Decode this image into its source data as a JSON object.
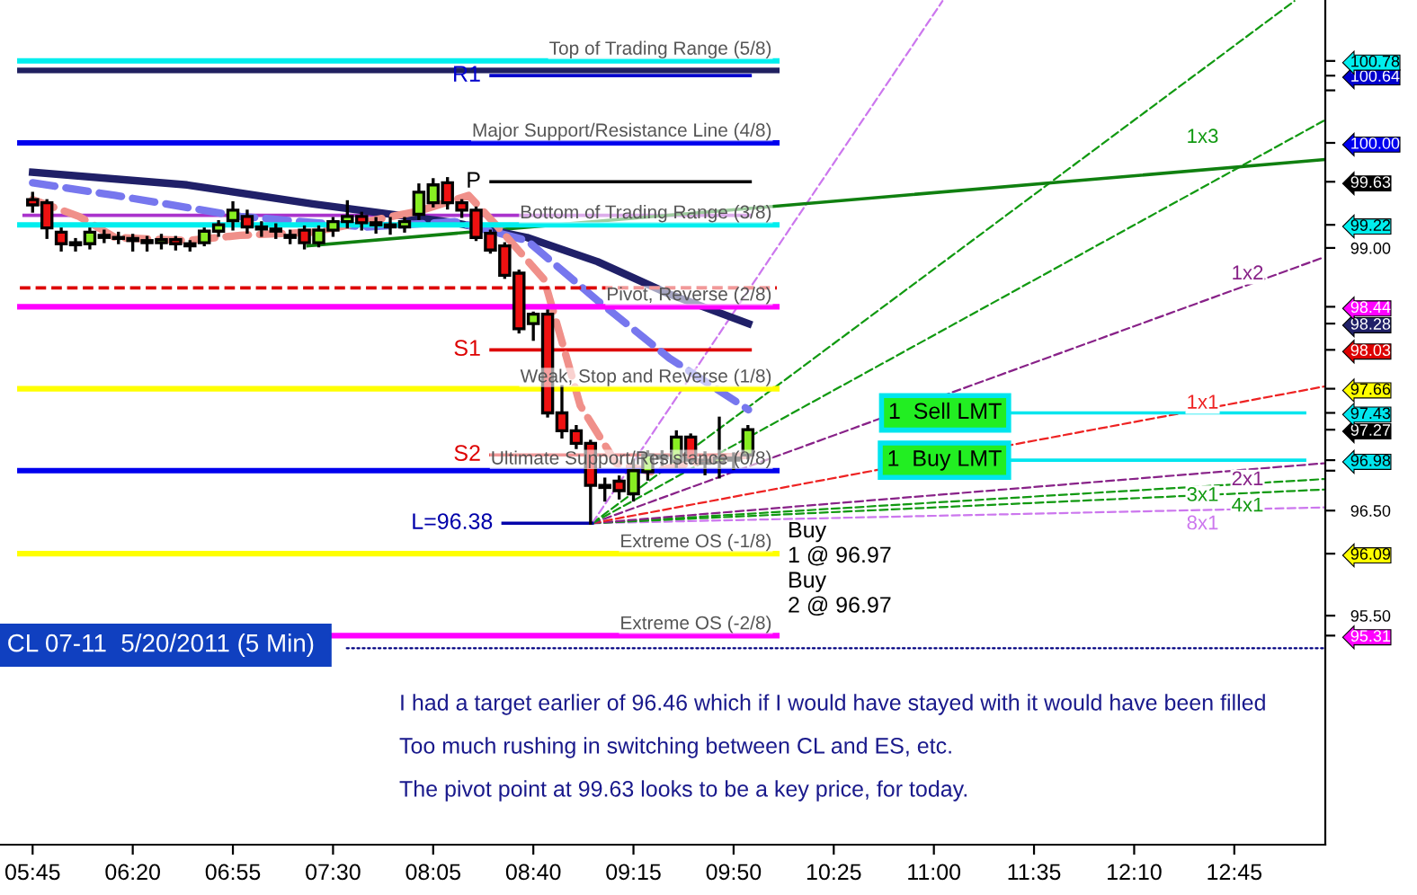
{
  "chart_data": {
    "type": "candlestick",
    "title": "CL 07-11  5/20/2011 (5 Min)",
    "x": [
      5.75,
      5.8333,
      5.9167,
      6.0,
      6.0833,
      6.1667,
      6.25,
      6.3333,
      6.4167,
      6.5,
      6.5833,
      6.6667,
      6.75,
      6.8333,
      6.9167,
      7.0,
      7.0833,
      7.1667,
      7.25,
      7.3333,
      7.4167,
      7.5,
      7.5833,
      7.6667,
      7.75,
      7.8333,
      7.9167,
      8.0,
      8.0833,
      8.1667,
      8.25,
      8.3333,
      8.4167,
      8.5,
      8.5833,
      8.6667,
      8.75,
      8.8333,
      8.9167,
      9.0,
      9.0833,
      9.1667,
      9.25,
      9.3333,
      9.4167,
      9.5,
      9.5833,
      9.6667,
      9.75,
      9.8333,
      9.9167
    ],
    "ohlc": [
      [
        99.46,
        99.52,
        99.35,
        99.41
      ],
      [
        99.43,
        99.45,
        99.1,
        99.19
      ],
      [
        99.15,
        99.18,
        98.98,
        99.04
      ],
      [
        99.05,
        99.08,
        98.98,
        99.03
      ],
      [
        99.04,
        99.18,
        99.0,
        99.15
      ],
      [
        99.12,
        99.16,
        99.06,
        99.1
      ],
      [
        99.1,
        99.14,
        99.05,
        99.09
      ],
      [
        99.09,
        99.12,
        98.98,
        99.07
      ],
      [
        99.07,
        99.1,
        98.98,
        99.05
      ],
      [
        99.05,
        99.12,
        99.0,
        99.08
      ],
      [
        99.08,
        99.1,
        98.99,
        99.04
      ],
      [
        99.04,
        99.06,
        98.98,
        99.02
      ],
      [
        99.05,
        99.18,
        99.03,
        99.16
      ],
      [
        99.16,
        99.25,
        99.12,
        99.22
      ],
      [
        99.26,
        99.43,
        99.18,
        99.36
      ],
      [
        99.3,
        99.35,
        99.15,
        99.2
      ],
      [
        99.2,
        99.24,
        99.12,
        99.18
      ],
      [
        99.18,
        99.22,
        99.1,
        99.16
      ],
      [
        99.12,
        99.16,
        99.05,
        99.1
      ],
      [
        99.17,
        99.2,
        99.0,
        99.05
      ],
      [
        99.05,
        99.2,
        99.02,
        99.17
      ],
      [
        99.17,
        99.28,
        99.12,
        99.25
      ],
      [
        99.25,
        99.44,
        99.2,
        99.3
      ],
      [
        99.3,
        99.33,
        99.18,
        99.24
      ],
      [
        99.24,
        99.28,
        99.15,
        99.22
      ],
      [
        99.22,
        99.28,
        99.14,
        99.2
      ],
      [
        99.2,
        99.28,
        99.16,
        99.25
      ],
      [
        99.32,
        99.6,
        99.28,
        99.53
      ],
      [
        99.43,
        99.65,
        99.4,
        99.6
      ],
      [
        99.62,
        99.66,
        99.38,
        99.43
      ],
      [
        99.43,
        99.45,
        99.3,
        99.36
      ],
      [
        99.36,
        99.38,
        99.08,
        99.1
      ],
      [
        99.14,
        99.16,
        98.96,
        98.98
      ],
      [
        99.02,
        99.04,
        98.72,
        98.74
      ],
      [
        98.76,
        98.78,
        98.2,
        98.23
      ],
      [
        98.28,
        98.38,
        98.13,
        98.37
      ],
      [
        98.37,
        98.4,
        97.4,
        97.43
      ],
      [
        97.43,
        97.68,
        97.2,
        97.26
      ],
      [
        97.26,
        97.3,
        97.1,
        97.14
      ],
      [
        97.14,
        97.16,
        96.38,
        96.74
      ],
      [
        96.74,
        96.8,
        96.6,
        96.72
      ],
      [
        96.78,
        96.82,
        96.62,
        96.69
      ],
      [
        96.66,
        96.98,
        96.6,
        96.88
      ],
      [
        96.87,
        97.06,
        96.8,
        97.03
      ],
      [
        97.02,
        97.06,
        96.94,
        97.0
      ],
      [
        96.97,
        97.25,
        96.92,
        97.2
      ],
      [
        97.2,
        97.22,
        96.96,
        96.98
      ],
      [
        96.98,
        97.05,
        96.85,
        96.95
      ],
      [
        96.96,
        97.38,
        96.82,
        97.0
      ],
      [
        97.0,
        97.04,
        96.9,
        96.98
      ],
      [
        97.03,
        97.3,
        97.0,
        97.27
      ]
    ],
    "series": [
      {
        "type": "line",
        "color": "#202068",
        "x": [
          5.75,
          6.65,
          7.38,
          8.21,
          8.63,
          9.04,
          9.46,
          9.92
        ],
        "values": [
          99.72,
          99.6,
          99.42,
          99.24,
          99.1,
          98.87,
          98.56,
          98.28
        ]
      },
      {
        "type": "line",
        "color": "#7777ee",
        "line_style": "dashed",
        "x": [
          5.75,
          6.23,
          6.96,
          7.69,
          8.21,
          8.63,
          9.04,
          9.46,
          9.92
        ],
        "values": [
          99.62,
          99.5,
          99.3,
          99.2,
          99.25,
          99.07,
          98.5,
          97.95,
          97.46
        ]
      },
      {
        "type": "line",
        "color": "#f0908a",
        "line_style": "dashed",
        "x": [
          5.75,
          6.02,
          6.23,
          6.65,
          6.96,
          7.38,
          8.0,
          8.29,
          8.46,
          8.73,
          8.94,
          9.15,
          9.35,
          9.67,
          9.92
        ],
        "values": [
          99.46,
          99.3,
          99.1,
          99.07,
          99.12,
          99.15,
          99.35,
          99.5,
          99.2,
          98.7,
          97.5,
          96.95,
          96.87,
          96.98,
          97.03
        ]
      },
      {
        "type": "line",
        "color": "#108010",
        "x": [
          7.354,
          13.27
        ],
        "values": [
          99.02,
          99.84
        ]
      },
      {
        "type": "line",
        "color": "#aa33cc",
        "x": [
          5.7,
          9.93
        ],
        "values": [
          99.31,
          99.31
        ]
      },
      {
        "name": "R1",
        "type": "line",
        "color": "#0000cc",
        "x": [
          8.42,
          9.93
        ],
        "values": [
          100.64,
          100.64
        ]
      },
      {
        "name": "P",
        "type": "line",
        "color": "#000000",
        "x": [
          8.42,
          9.93
        ],
        "values": [
          99.63,
          99.63
        ]
      },
      {
        "name": "S1",
        "type": "line",
        "color": "#dd0000",
        "x": [
          8.42,
          9.93
        ],
        "values": [
          98.03,
          98.03
        ]
      },
      {
        "name": "S2",
        "type": "line",
        "color": "#dd0000",
        "x": [
          8.42,
          9.93
        ],
        "values": [
          97.03,
          97.03
        ]
      },
      {
        "name": "L=96.38",
        "type": "line",
        "color": "#0000aa",
        "x": [
          8.49,
          9.01
        ],
        "values": [
          96.38,
          96.38
        ]
      },
      {
        "name": "1  Sell LMT",
        "type": "line",
        "color": "#00e5ee",
        "x": [
          11.44,
          13.16
        ],
        "values": [
          97.43,
          97.43
        ]
      },
      {
        "name": "1  Buy LMT",
        "type": "line",
        "color": "#00e5ee",
        "x": [
          11.44,
          13.16
        ],
        "values": [
          96.98,
          96.98
        ]
      },
      {
        "type": "line",
        "color": "#000080",
        "line_style": "dotted",
        "x": [
          7.58,
          13.28
        ],
        "values": [
          95.19,
          95.19
        ]
      },
      {
        "type": "line",
        "color": "#cc77ee",
        "line_style": "dashed",
        "x": [
          9.01,
          11.05
        ],
        "values": [
          96.38,
          101.35
        ]
      },
      {
        "type": "line",
        "color": "#119911",
        "line_style": "dashed",
        "x": [
          9.01,
          13.1
        ],
        "values": [
          96.38,
          101.35
        ]
      },
      {
        "name": "1x3",
        "type": "line",
        "color": "#119911",
        "line_style": "dashed",
        "x": [
          9.01,
          13.27
        ],
        "values": [
          96.38,
          100.21
        ]
      },
      {
        "name": "1x2",
        "type": "line",
        "color": "#882288",
        "line_style": "dashed",
        "x": [
          9.01,
          13.27
        ],
        "values": [
          96.38,
          98.91
        ]
      },
      {
        "name": "1x1",
        "type": "line",
        "color": "#ee2222",
        "line_style": "dashed",
        "x": [
          9.01,
          13.27
        ],
        "values": [
          96.38,
          97.68
        ]
      },
      {
        "name": "2x1",
        "type": "line",
        "color": "#882288",
        "line_style": "dashed",
        "x": [
          9.01,
          13.27
        ],
        "values": [
          96.38,
          96.95
        ]
      },
      {
        "name": "3x1",
        "type": "line",
        "color": "#119911",
        "line_style": "dashed",
        "x": [
          9.01,
          13.27
        ],
        "values": [
          96.38,
          96.8
        ]
      },
      {
        "name": "4x1",
        "type": "line",
        "color": "#119911",
        "line_style": "dashed",
        "x": [
          9.01,
          13.27
        ],
        "values": [
          96.38,
          96.7
        ]
      },
      {
        "name": "8x1",
        "type": "line",
        "color": "#cc77ee",
        "line_style": "dashed",
        "x": [
          9.01,
          13.27
        ],
        "values": [
          96.38,
          96.53
        ]
      }
    ],
    "ref_lines": [
      {
        "axis": "y",
        "value": 100.78,
        "label": "Top of Trading Range (5/8)",
        "color": "#00eeee"
      },
      {
        "axis": "y",
        "value": 100.69,
        "label": null,
        "color": "#202060"
      },
      {
        "axis": "y",
        "value": 100.0,
        "label": "Major Support/Resistance Line (4/8)",
        "color": "#0000ee"
      },
      {
        "axis": "y",
        "value": 99.22,
        "label": "Bottom of Trading Range (3/8)",
        "color": "#00eeee"
      },
      {
        "axis": "y",
        "value": 98.62,
        "label": null,
        "color": "#dd0000",
        "line_style": "dashed"
      },
      {
        "axis": "y",
        "value": 98.44,
        "label": "Pivot, Reverse (2/8)",
        "color": "#ff00ff"
      },
      {
        "axis": "y",
        "value": 97.66,
        "label": "Weak, Stop and Reverse (1/8)",
        "color": "#ffff00"
      },
      {
        "axis": "y",
        "value": 96.88,
        "label": "Ultimate Support/Resistance (0/8)",
        "color": "#0000ee"
      },
      {
        "axis": "y",
        "value": 96.09,
        "label": "Extreme OS (-1/8)",
        "color": "#ffff00"
      },
      {
        "axis": "y",
        "value": 95.31,
        "label": "Extreme OS (-2/8)",
        "color": "#ff00ff"
      }
    ],
    "annotations": [
      "Buy\n1 @ 96.97\nBuy\n2 @ 96.97",
      "I had a target earlier of 96.46 which if I would have stayed with it would have been filled",
      "Too much rushing in switching between CL and ES, etc.",
      "The pivot point at 99.63 looks to be a key price, for today."
    ],
    "xlim": [
      5.56,
      13.28
    ],
    "ylim": [
      93.32,
      101.36
    ],
    "xticks": [
      {
        "value": 5.75,
        "label": "05:45"
      },
      {
        "value": 6.3333,
        "label": "06:20"
      },
      {
        "value": 6.9167,
        "label": "06:55"
      },
      {
        "value": 7.5,
        "label": "07:30"
      },
      {
        "value": 8.0833,
        "label": "08:05"
      },
      {
        "value": 8.6667,
        "label": "08:40"
      },
      {
        "value": 9.25,
        "label": "09:15"
      },
      {
        "value": 9.8333,
        "label": "09:50"
      },
      {
        "value": 10.4167,
        "label": "10:25"
      },
      {
        "value": 11.0,
        "label": "11:00"
      },
      {
        "value": 11.5833,
        "label": "11:35"
      },
      {
        "value": 12.1667,
        "label": "12:10"
      },
      {
        "value": 12.75,
        "label": "12:45"
      }
    ],
    "yticks": [
      {
        "value": 95.31,
        "label": "95.31"
      },
      {
        "value": 95.5,
        "label": "95.50"
      },
      {
        "value": 96.09,
        "label": "96.09"
      },
      {
        "value": 96.5,
        "label": "96.50"
      },
      {
        "value": 96.88,
        "label": null
      },
      {
        "value": 96.98,
        "label": "96.98"
      },
      {
        "value": 97.27,
        "label": "97.27"
      },
      {
        "value": 97.43,
        "label": "97.43"
      },
      {
        "value": 97.66,
        "label": "97.66"
      },
      {
        "value": 98.03,
        "label": "98.03"
      },
      {
        "value": 98.28,
        "label": "98.28"
      },
      {
        "value": 98.44,
        "label": "98.44"
      },
      {
        "value": 99.0,
        "label": "99.00"
      },
      {
        "value": 99.22,
        "label": "99.22"
      },
      {
        "value": 99.63,
        "label": "99.63"
      },
      {
        "value": 100.0,
        "label": "100.00"
      },
      {
        "value": 100.5,
        "label": null
      },
      {
        "value": 100.64,
        "label": "100.64"
      },
      {
        "value": 100.78,
        "label": "100.78"
      }
    ],
    "grid": false,
    "legend": false
  }
}
